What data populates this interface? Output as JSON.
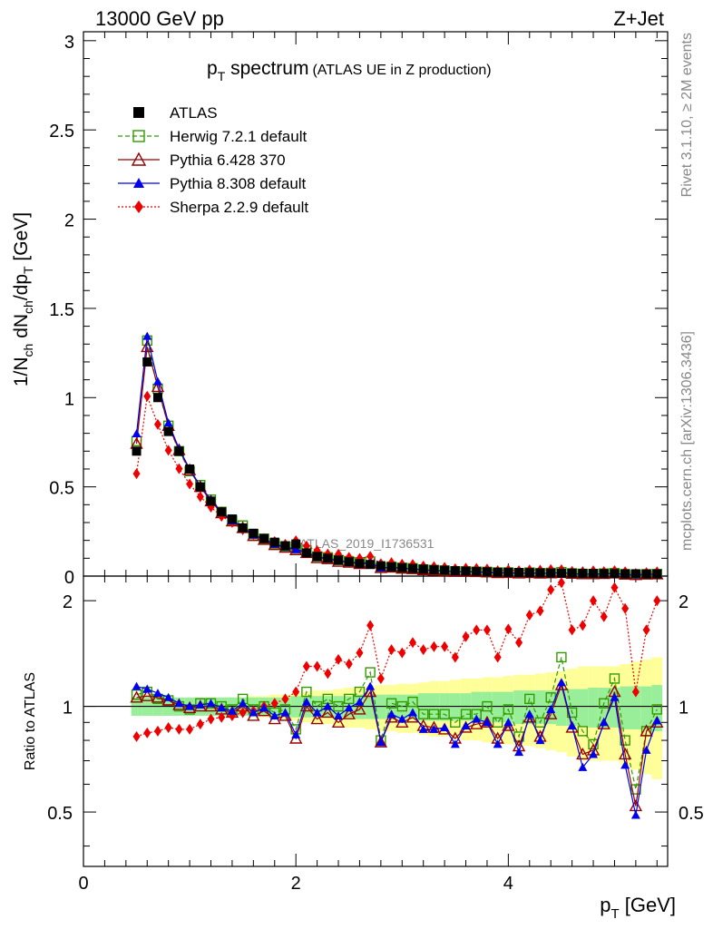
{
  "header": {
    "left": "13000 GeV pp",
    "right": "Z+Jet",
    "side_top": "Rivet 3.1.10, ≥ 2M events",
    "side_bottom": "mcplots.cern.ch [arXiv:1306.3436]"
  },
  "chart_data": {
    "type": "line",
    "title": "p_T spectrum",
    "subtitle": "(ATLAS UE in Z production)",
    "watermark": "ATLAS_2019_I1736531",
    "xlabel": "p_T [GeV]",
    "ylabel_main": "1/N_ch dN_ch/dp_T [GeV]",
    "ylabel_ratio": "Ratio to ATLAS",
    "xlim": [
      0,
      5.5
    ],
    "ylim_main": [
      0,
      3.05
    ],
    "ylim_ratio": [
      0.35,
      2.35
    ],
    "x_ticks": [
      "0",
      "2",
      "4"
    ],
    "y_ticks_main": [
      "0",
      "0.5",
      "1",
      "1.5",
      "2",
      "2.5",
      "3"
    ],
    "y_ticks_ratio": [
      "0.5",
      "1",
      "2"
    ],
    "legend_position": "top-left",
    "x": [
      0.5,
      0.6,
      0.7,
      0.8,
      0.9,
      1.0,
      1.1,
      1.2,
      1.3,
      1.4,
      1.5,
      1.6,
      1.7,
      1.8,
      1.9,
      2.0,
      2.1,
      2.2,
      2.3,
      2.4,
      2.5,
      2.6,
      2.7,
      2.8,
      2.9,
      3.0,
      3.1,
      3.2,
      3.3,
      3.4,
      3.5,
      3.6,
      3.7,
      3.8,
      3.9,
      4.0,
      4.1,
      4.2,
      4.3,
      4.4,
      4.5,
      4.6,
      4.7,
      4.8,
      4.9,
      5.0,
      5.1,
      5.2,
      5.3,
      5.4
    ],
    "data": {
      "name": "ATLAS",
      "values": [
        0.7,
        1.2,
        1.0,
        0.81,
        0.7,
        0.6,
        0.5,
        0.42,
        0.36,
        0.32,
        0.27,
        0.24,
        0.21,
        0.19,
        0.17,
        0.18,
        0.13,
        0.11,
        0.1,
        0.09,
        0.08,
        0.07,
        0.065,
        0.058,
        0.052,
        0.047,
        0.043,
        0.039,
        0.036,
        0.033,
        0.03,
        0.028,
        0.026,
        0.024,
        0.022,
        0.021,
        0.02,
        0.019,
        0.018,
        0.017,
        0.016,
        0.016,
        0.015,
        0.015,
        0.014,
        0.014,
        0.013,
        0.013,
        0.012,
        0.012
      ]
    },
    "band_mc": [
      0.06,
      0.06,
      0.06,
      0.06,
      0.06,
      0.06,
      0.06,
      0.06,
      0.06,
      0.06,
      0.06,
      0.06,
      0.06,
      0.06,
      0.06,
      0.07,
      0.07,
      0.07,
      0.07,
      0.07,
      0.07,
      0.08,
      0.08,
      0.08,
      0.08,
      0.08,
      0.08,
      0.09,
      0.09,
      0.09,
      0.09,
      0.09,
      0.1,
      0.1,
      0.1,
      0.1,
      0.11,
      0.11,
      0.11,
      0.11,
      0.12,
      0.12,
      0.12,
      0.13,
      0.13,
      0.13,
      0.14,
      0.14,
      0.14,
      0.15
    ],
    "band_total": [
      0.04,
      0.04,
      0.04,
      0.05,
      0.05,
      0.05,
      0.05,
      0.05,
      0.06,
      0.06,
      0.06,
      0.07,
      0.07,
      0.08,
      0.08,
      0.09,
      0.1,
      0.11,
      0.11,
      0.12,
      0.13,
      0.13,
      0.14,
      0.15,
      0.15,
      0.16,
      0.16,
      0.17,
      0.18,
      0.18,
      0.19,
      0.2,
      0.2,
      0.21,
      0.21,
      0.22,
      0.23,
      0.23,
      0.24,
      0.25,
      0.26,
      0.28,
      0.3,
      0.3,
      0.3,
      0.3,
      0.32,
      0.34,
      0.36,
      0.38
    ],
    "series": [
      {
        "name": "Herwig 7.2.1 default",
        "color": "#339900",
        "marker": "open-square",
        "dash": "5,3",
        "ratio": [
          1.08,
          1.1,
          1.05,
          1.04,
          1.0,
          0.98,
          1.02,
          1.02,
          1.0,
          0.98,
          1.05,
          0.98,
          1.0,
          0.96,
          0.98,
          0.86,
          1.1,
          1.0,
          1.05,
          1.0,
          1.05,
          1.1,
          1.25,
          0.8,
          1.02,
          1.0,
          1.03,
          0.95,
          0.95,
          0.95,
          0.9,
          0.95,
          0.95,
          1.0,
          0.9,
          0.98,
          0.82,
          1.05,
          0.9,
          1.06,
          1.38,
          0.96,
          0.85,
          0.78,
          1.02,
          1.2,
          0.8,
          0.58,
          0.85,
          0.98
        ]
      },
      {
        "name": "Pythia 6.428 370",
        "color": "#990000",
        "marker": "open-triangle",
        "dash": "",
        "ratio": [
          1.06,
          1.07,
          1.06,
          1.04,
          1.01,
          0.99,
          1.0,
          1.0,
          0.98,
          0.96,
          1.0,
          0.94,
          0.97,
          0.92,
          0.94,
          0.81,
          1.0,
          0.92,
          0.96,
          0.9,
          0.95,
          0.98,
          1.1,
          0.79,
          0.93,
          0.9,
          0.93,
          0.88,
          0.87,
          0.86,
          0.81,
          0.87,
          0.89,
          0.9,
          0.81,
          0.88,
          0.77,
          0.93,
          0.82,
          0.95,
          1.15,
          0.87,
          0.73,
          0.75,
          0.89,
          1.1,
          0.73,
          0.52,
          0.85,
          0.9
        ]
      },
      {
        "name": "Pythia 8.308 default",
        "color": "#0000ee",
        "marker": "filled-triangle",
        "dash": "",
        "ratio": [
          1.14,
          1.12,
          1.09,
          1.06,
          1.02,
          1.0,
          1.01,
          1.02,
          0.99,
          0.97,
          1.02,
          0.96,
          0.99,
          0.94,
          0.96,
          0.83,
          1.03,
          0.96,
          1.0,
          0.94,
          0.99,
          1.03,
          1.14,
          0.79,
          0.95,
          0.92,
          0.96,
          0.86,
          0.86,
          0.87,
          0.78,
          0.88,
          0.92,
          0.9,
          0.78,
          0.9,
          0.74,
          0.95,
          0.8,
          0.98,
          1.17,
          0.88,
          0.67,
          0.73,
          0.9,
          1.06,
          0.68,
          0.49,
          0.75,
          0.91
        ]
      },
      {
        "name": "Sherpa 2.2.9 default",
        "color": "#ee0000",
        "marker": "filled-diamond",
        "dash": "2,2",
        "ratio": [
          0.82,
          0.84,
          0.85,
          0.87,
          0.86,
          0.86,
          0.89,
          0.92,
          0.93,
          0.94,
          0.96,
          0.97,
          1.0,
          1.02,
          1.05,
          1.1,
          1.3,
          1.3,
          1.24,
          1.36,
          1.32,
          1.42,
          1.7,
          1.2,
          1.45,
          1.42,
          1.52,
          1.45,
          1.48,
          1.48,
          1.38,
          1.58,
          1.65,
          1.65,
          1.38,
          1.66,
          1.52,
          1.82,
          1.87,
          2.15,
          2.25,
          1.65,
          1.7,
          2.0,
          1.8,
          2.18,
          1.9,
          1.1,
          1.65,
          2.0
        ]
      }
    ]
  }
}
